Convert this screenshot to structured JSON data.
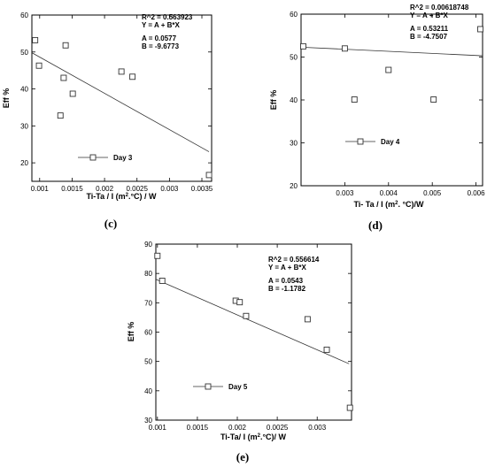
{
  "chart_data": [
    {
      "type": "scatter",
      "caption": "(c)",
      "xlabel": "Ti-Ta / I (m2.°C) / W",
      "ylabel": "Eff %",
      "xlim": [
        0.00088,
        0.00365
      ],
      "ylim": [
        15,
        60
      ],
      "x_ticks": [
        0.001,
        0.0015,
        0.002,
        0.0025,
        0.003,
        0.0035
      ],
      "x_tick_labels": [
        "0.001",
        "0.0015",
        "0.002",
        "0.0025",
        "0.003",
        "0.0035"
      ],
      "y_ticks": [
        20,
        30,
        40,
        50,
        60
      ],
      "y_tick_labels": [
        "20",
        "30",
        "40",
        "50",
        "60"
      ],
      "points": [
        [
          0.00093,
          53.2
        ],
        [
          0.00099,
          46.3
        ],
        [
          0.00132,
          32.8
        ],
        [
          0.00137,
          43.0
        ],
        [
          0.0014,
          51.8
        ],
        [
          0.00151,
          38.7
        ],
        [
          0.00226,
          44.7
        ],
        [
          0.00243,
          43.3
        ],
        [
          0.00361,
          16.7
        ]
      ],
      "fit_line": [
        [
          0.00088,
          49.8
        ],
        [
          0.00361,
          23.0
        ]
      ],
      "annotation": [
        "R^2 = 0.563923",
        "Y = A + B*X",
        "A = 0.0577",
        "B = -9.6773"
      ],
      "legend": "Day 3"
    },
    {
      "type": "scatter",
      "caption": "(d)",
      "xlabel": "Ti- Ta / I (m2. °C)/W",
      "ylabel": "Eff %",
      "xlim": [
        0.002,
        0.00615
      ],
      "ylim": [
        20,
        60
      ],
      "x_ticks": [
        0.003,
        0.004,
        0.005,
        0.006
      ],
      "x_tick_labels": [
        "0.003",
        "0.004",
        "0.005",
        "0.006"
      ],
      "y_ticks": [
        20,
        30,
        40,
        50,
        60
      ],
      "y_tick_labels": [
        "20",
        "30",
        "40",
        "50",
        "60"
      ],
      "points": [
        [
          0.00205,
          52.5
        ],
        [
          0.003,
          52.0
        ],
        [
          0.00322,
          40.1
        ],
        [
          0.004,
          47.0
        ],
        [
          0.00503,
          40.1
        ],
        [
          0.0061,
          56.5
        ]
      ],
      "fit_line": [
        [
          0.002,
          52.3
        ],
        [
          0.00615,
          50.3
        ]
      ],
      "annotation": [
        "R^2 = 0.00618748",
        "Y = A + B*X",
        "A = 0.53211",
        "B = -4.7507"
      ],
      "legend": "Day 4"
    },
    {
      "type": "scatter",
      "caption": "(e)",
      "xlabel": "Ti-Ta/ I (m2.°C)/ W",
      "ylabel": "Eff %",
      "xlim": [
        0.00098,
        0.00343
      ],
      "ylim": [
        30,
        90
      ],
      "x_ticks": [
        0.001,
        0.0015,
        0.002,
        0.0025,
        0.003
      ],
      "x_tick_labels": [
        "0.001",
        "0.0015",
        "0.002",
        "0.0025",
        "0.003"
      ],
      "y_ticks": [
        30,
        40,
        50,
        60,
        70,
        80,
        90
      ],
      "y_tick_labels": [
        "30",
        "40",
        "50",
        "60",
        "70",
        "80",
        "90"
      ],
      "points": [
        [
          0.001,
          86.0
        ],
        [
          0.00106,
          77.5
        ],
        [
          0.00198,
          70.7
        ],
        [
          0.00203,
          70.2
        ],
        [
          0.00211,
          65.5
        ],
        [
          0.00288,
          64.4
        ],
        [
          0.00312,
          54.0
        ],
        [
          0.00341,
          34.2
        ]
      ],
      "fit_line": [
        [
          0.00098,
          78.0
        ],
        [
          0.0034,
          49.2
        ]
      ],
      "annotation": [
        "R^2 = 0.556614",
        "Y = A + B*X",
        "A = 0.0543",
        "B = -1.1782"
      ],
      "legend": "Day 5"
    }
  ]
}
